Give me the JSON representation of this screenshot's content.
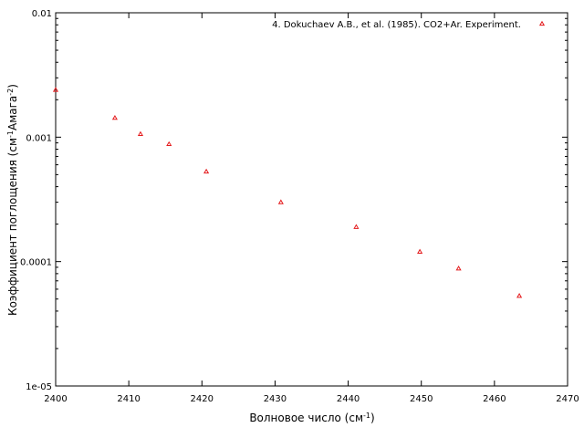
{
  "chart_data": {
    "type": "scatter",
    "title": "",
    "xlabel": {
      "main": "Волновое число (см",
      "sup": "-1",
      "end": ")"
    },
    "ylabel": {
      "part1": "Коэффициент поглощения (см",
      "sup1": "-1",
      "part2": "Амага",
      "sup2": "-2",
      "part3": ")"
    },
    "xlim": [
      2400,
      2470
    ],
    "ylim": [
      1e-05,
      0.01
    ],
    "yscale": "log",
    "grid": false,
    "legend_position": "top-right",
    "x_ticks": [
      "2400",
      "2410",
      "2420",
      "2430",
      "2440",
      "2450",
      "2460",
      "2470"
    ],
    "y_ticks": [
      {
        "value": 0.01,
        "label": "0.01"
      },
      {
        "value": 0.001,
        "label": "0.001"
      },
      {
        "value": 0.0001,
        "label": "0.0001"
      },
      {
        "value": 1e-05,
        "label": "1e-05"
      }
    ],
    "series": [
      {
        "name": "4. Dokuchaev A.B., et al. (1985). CO2+Ar. Experiment.",
        "color": "#e41a1c",
        "marker": "triangle",
        "points": [
          {
            "x": 2400.0,
            "y": 0.0024
          },
          {
            "x": 2408.1,
            "y": 0.00143
          },
          {
            "x": 2411.6,
            "y": 0.00106
          },
          {
            "x": 2415.5,
            "y": 0.00088
          },
          {
            "x": 2420.6,
            "y": 0.00053
          },
          {
            "x": 2430.8,
            "y": 0.0003
          },
          {
            "x": 2441.1,
            "y": 0.00019
          },
          {
            "x": 2449.8,
            "y": 0.00012
          },
          {
            "x": 2455.1,
            "y": 8.8e-05
          },
          {
            "x": 2463.4,
            "y": 5.3e-05
          }
        ]
      }
    ]
  }
}
